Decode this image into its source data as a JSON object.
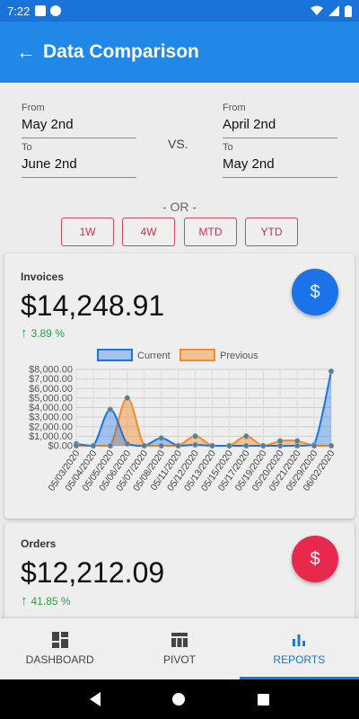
{
  "status_bar": {
    "time": "7:22"
  },
  "app_bar": {
    "title": "Data Comparison"
  },
  "filters": {
    "current": {
      "from_label": "From",
      "from_value": "May 2nd",
      "to_label": "To",
      "to_value": "June 2nd"
    },
    "vs_label": "VS.",
    "previous": {
      "from_label": "From",
      "from_value": "April 2nd",
      "to_label": "To",
      "to_value": "May 2nd"
    },
    "or_label": "- OR -",
    "ranges": [
      "1W",
      "4W",
      "MTD",
      "YTD"
    ]
  },
  "invoices": {
    "title": "Invoices",
    "amount": "$14,248.91",
    "change": "3.89 %",
    "fab_icon": "$",
    "fab_color": "#1a73e8"
  },
  "orders": {
    "title": "Orders",
    "amount": "$12,212.09",
    "change": "41.85 %",
    "fab_icon": "$",
    "fab_color": "#e8294d"
  },
  "chart_data": {
    "type": "area",
    "legend": [
      "Current",
      "Previous"
    ],
    "legend_position": "top",
    "grid": true,
    "ylim": [
      0,
      8000
    ],
    "yticks": [
      "$8,000.00",
      "$7,000.00",
      "$6,000.00",
      "$5,000.00",
      "$4,000.00",
      "$3,000.00",
      "$2,000.00",
      "$1,000.00",
      "$0.00"
    ],
    "categories": [
      "05/03/2020",
      "05/04/2020",
      "05/05/2020",
      "05/06/2020",
      "05/07/2020",
      "05/08/2020",
      "05/11/2020",
      "05/12/2020",
      "05/13/2020",
      "05/15/2020",
      "05/17/2020",
      "05/19/2020",
      "05/20/2020",
      "05/21/2020",
      "05/29/2020",
      "06/02/2020"
    ],
    "series": [
      {
        "name": "Current",
        "color": "#1a73e8",
        "values": [
          200,
          0,
          3800,
          200,
          0,
          800,
          0,
          100,
          0,
          0,
          0,
          0,
          0,
          0,
          100,
          7800
        ]
      },
      {
        "name": "Previous",
        "color": "#f28c28",
        "values": [
          0,
          0,
          0,
          5000,
          0,
          0,
          0,
          1000,
          0,
          0,
          1000,
          0,
          500,
          500,
          0,
          0
        ]
      }
    ]
  },
  "bottom_nav": {
    "items": [
      {
        "label": "DASHBOARD",
        "icon": "dashboard-icon"
      },
      {
        "label": "PIVOT",
        "icon": "table-icon"
      },
      {
        "label": "REPORTS",
        "icon": "bar-chart-icon"
      }
    ],
    "active_index": 2
  }
}
